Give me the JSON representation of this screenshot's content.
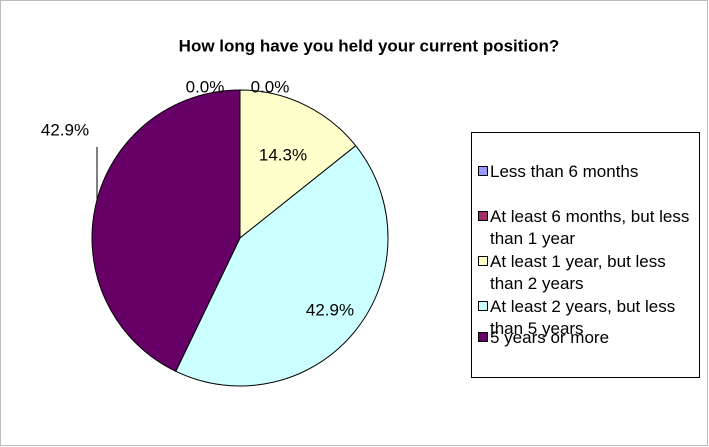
{
  "chart_data": {
    "type": "pie",
    "title": "How long have you held your current position?",
    "categories": [
      "Less than 6 months",
      "At least 6 months, but less than 1 year",
      "At least 1 year, but less than 2 years",
      "At least 2 years, but less than 5 years",
      "5 years or more"
    ],
    "values": [
      0,
      0,
      14.3,
      42.9,
      42.9
    ],
    "value_labels": [
      "0.0%",
      "0.0%",
      "14.3%",
      "42.9%",
      "42.9%"
    ],
    "colors": [
      "#9999ff",
      "#993366",
      "#ffffcc",
      "#ccffff",
      "#660066"
    ],
    "legend": "right"
  }
}
